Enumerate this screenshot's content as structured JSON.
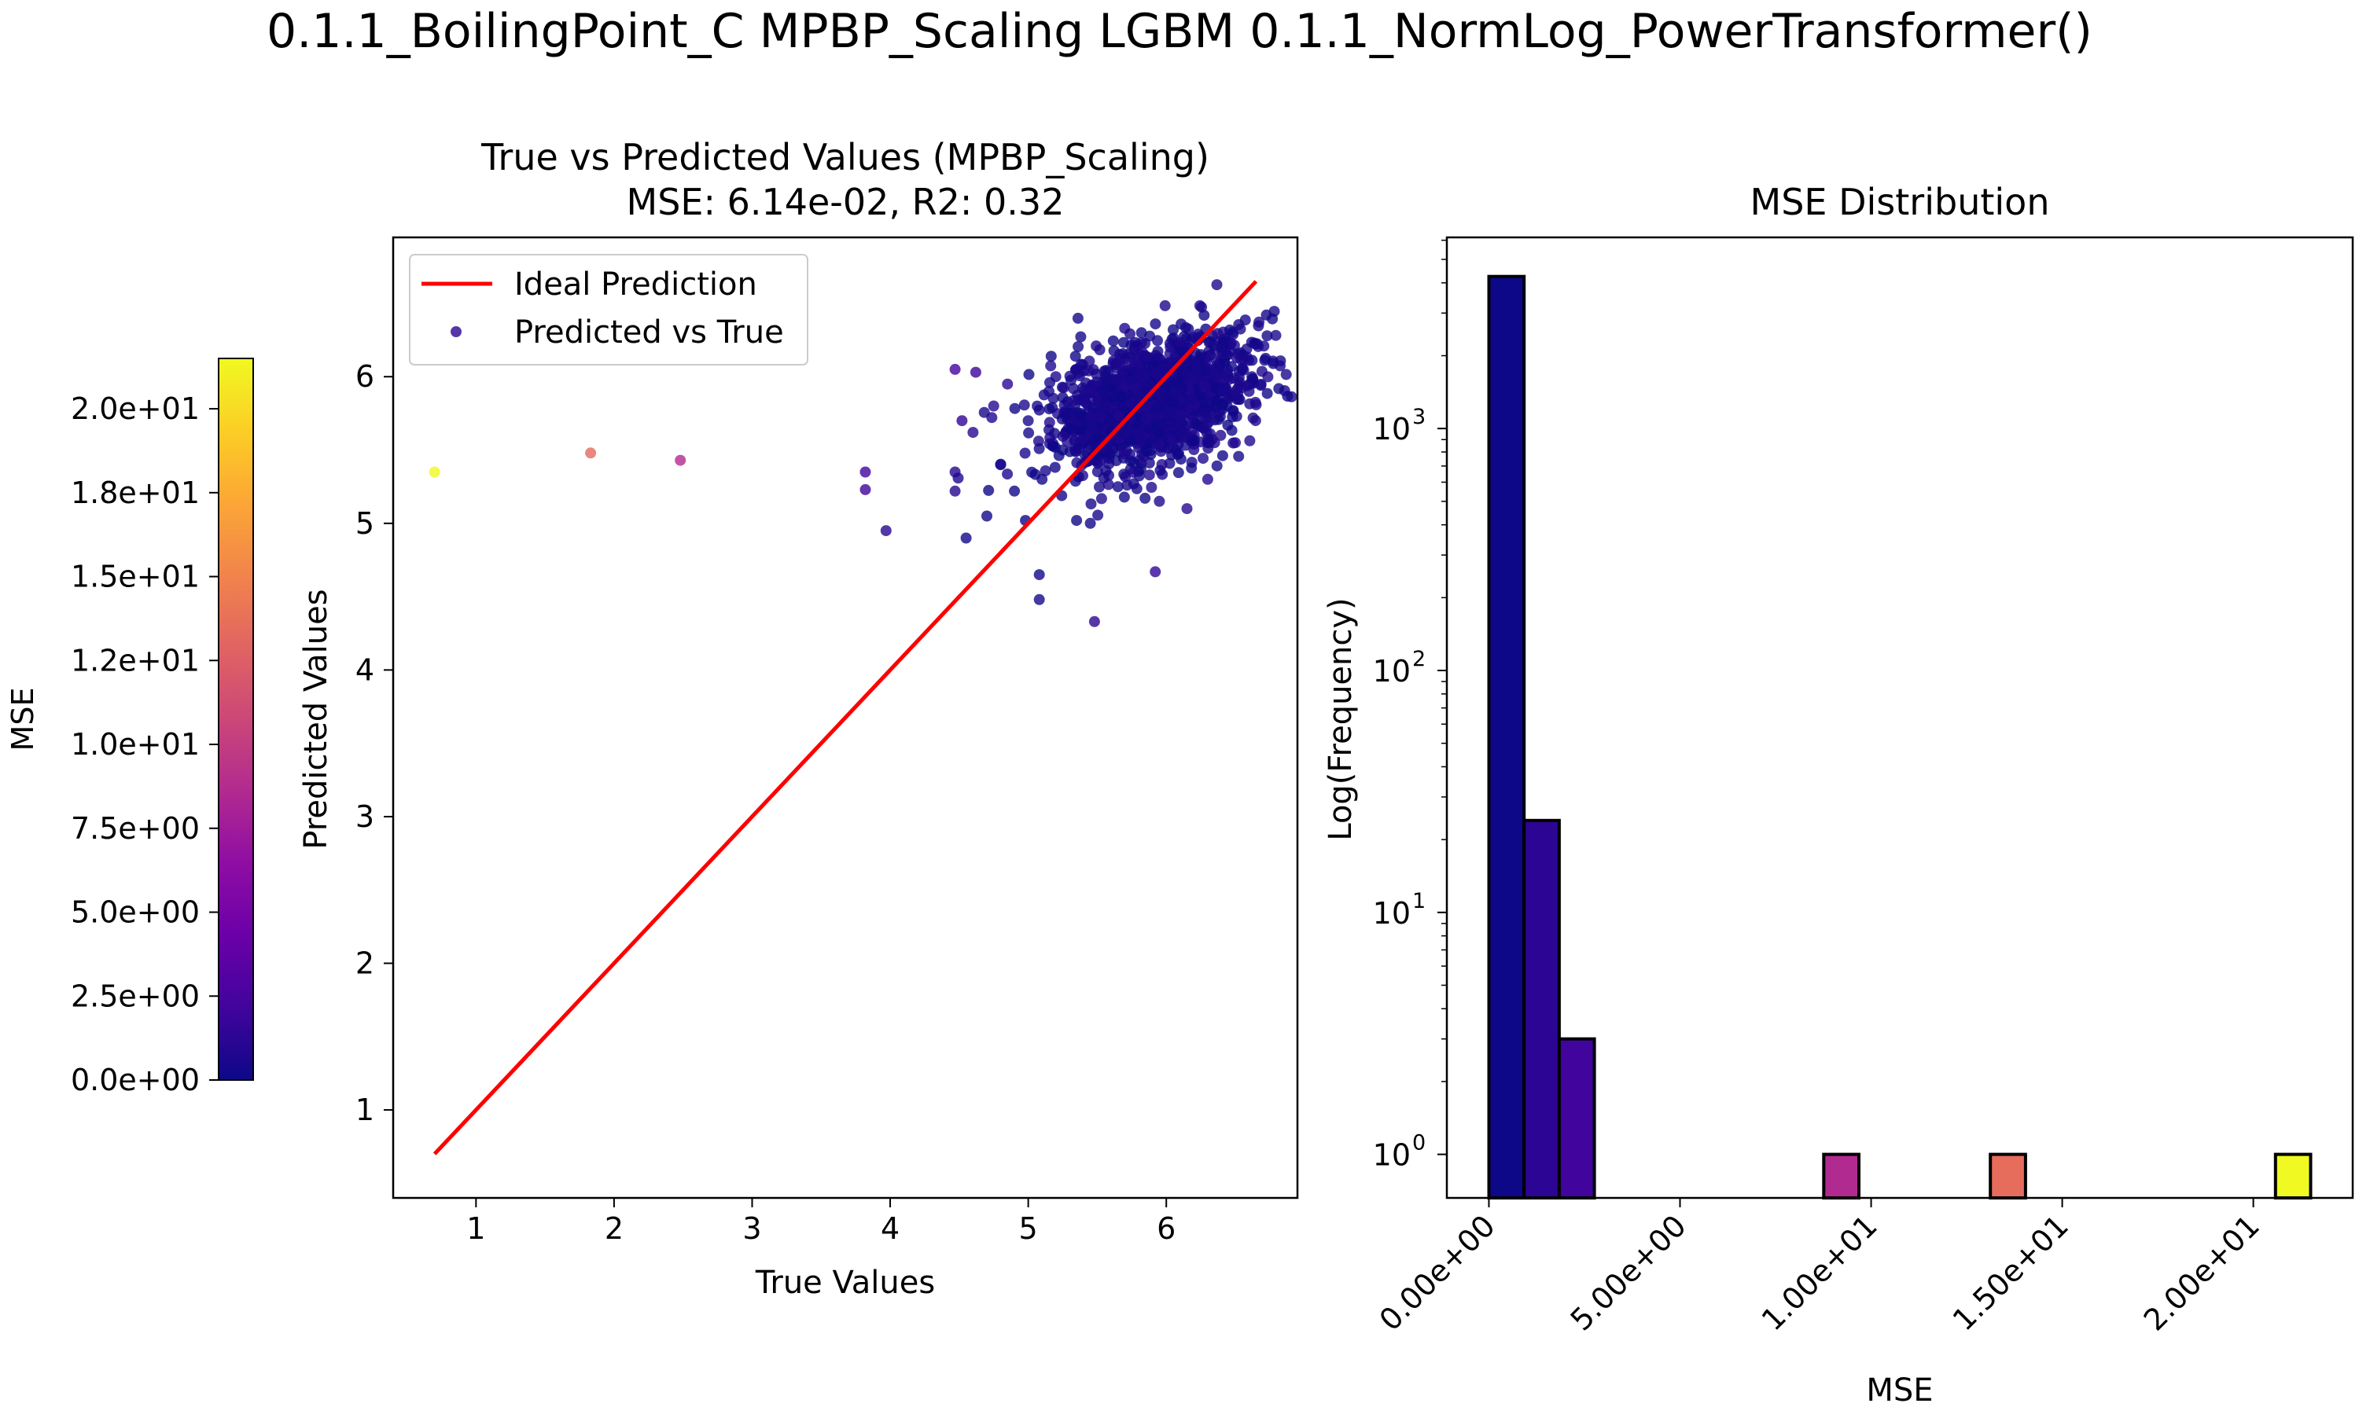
{
  "figure": {
    "suptitle": "0.1.1_BoilingPoint_C MPBP_Scaling LGBM 0.1.1_NormLog_PowerTransformer()"
  },
  "chart_data": [
    {
      "type": "scatter",
      "title": "True vs Predicted Values (MPBP_Scaling)",
      "subtitle": "MSE: 6.14e-02, R2: 0.32",
      "xlabel": "True Values",
      "ylabel": "Predicted Values",
      "xlim": [
        0.4,
        6.95
      ],
      "ylim": [
        0.4,
        6.95
      ],
      "xticks": [
        1,
        2,
        3,
        4,
        5,
        6
      ],
      "yticks": [
        1,
        2,
        3,
        4,
        5,
        6
      ],
      "grid": false,
      "legend": {
        "position": "top-left",
        "entries": [
          {
            "label": "Ideal Prediction",
            "color": "#ff0000",
            "kind": "line"
          },
          {
            "label": "Predicted vs True",
            "color": "#2a0593",
            "kind": "marker"
          }
        ]
      },
      "ideal_line": {
        "x": [
          0.7,
          6.65
        ],
        "y": [
          0.7,
          6.65
        ],
        "color": "#ff0000"
      },
      "colormap": "plasma",
      "colorbar": {
        "label": "MSE",
        "range": [
          0,
          21.5
        ],
        "ticks": [
          0,
          2.5,
          5,
          7.5,
          10,
          12.5,
          15,
          17.5,
          20
        ],
        "tick_labels": [
          "0.0e+00",
          "2.5e+00",
          "5.0e+00",
          "7.5e+00",
          "1.0e+01",
          "1.2e+01",
          "1.5e+01",
          "1.8e+01",
          "2.0e+01"
        ]
      },
      "points": [
        {
          "x": 0.7,
          "y": 5.35,
          "mse": 21.5
        },
        {
          "x": 1.83,
          "y": 5.48,
          "mse": 13.3
        },
        {
          "x": 2.48,
          "y": 5.43,
          "mse": 8.7
        },
        {
          "x": 3.82,
          "y": 5.35,
          "mse": 2.3
        },
        {
          "x": 3.82,
          "y": 5.23,
          "mse": 2.0
        },
        {
          "x": 3.97,
          "y": 4.95,
          "mse": 1.1
        },
        {
          "x": 4.47,
          "y": 6.05,
          "mse": 2.4
        },
        {
          "x": 4.62,
          "y": 6.03,
          "mse": 1.9
        },
        {
          "x": 4.47,
          "y": 5.35,
          "mse": 0.9
        },
        {
          "x": 4.47,
          "y": 5.22,
          "mse": 0.9
        },
        {
          "x": 4.52,
          "y": 5.7,
          "mse": 1.4
        },
        {
          "x": 4.55,
          "y": 4.9,
          "mse": 0.2
        },
        {
          "x": 4.6,
          "y": 5.62,
          "mse": 1.1
        },
        {
          "x": 4.7,
          "y": 5.05,
          "mse": 0.2
        },
        {
          "x": 4.75,
          "y": 5.8,
          "mse": 1.1
        },
        {
          "x": 4.8,
          "y": 5.4,
          "mse": 0.4
        },
        {
          "x": 4.85,
          "y": 5.95,
          "mse": 1.2
        },
        {
          "x": 4.9,
          "y": 5.22,
          "mse": 0.1
        },
        {
          "x": 4.98,
          "y": 5.02,
          "mse": 0.0
        },
        {
          "x": 5.08,
          "y": 4.65,
          "mse": 0.2
        },
        {
          "x": 5.08,
          "y": 4.48,
          "mse": 0.4
        },
        {
          "x": 5.0,
          "y": 5.7,
          "mse": 0.5
        },
        {
          "x": 5.1,
          "y": 5.3,
          "mse": 0.1
        },
        {
          "x": 5.15,
          "y": 5.9,
          "mse": 0.6
        },
        {
          "x": 5.2,
          "y": 6.0,
          "mse": 0.6
        },
        {
          "x": 5.25,
          "y": 5.5,
          "mse": 0.1
        },
        {
          "x": 5.35,
          "y": 6.05,
          "mse": 0.5
        },
        {
          "x": 5.35,
          "y": 5.02,
          "mse": 0.1
        },
        {
          "x": 5.48,
          "y": 4.33,
          "mse": 1.3
        },
        {
          "x": 5.45,
          "y": 5.0,
          "mse": 0.2
        },
        {
          "x": 5.65,
          "y": 5.25,
          "mse": 0.2
        },
        {
          "x": 5.92,
          "y": 4.67,
          "mse": 1.6
        },
        {
          "x": 5.95,
          "y": 5.15,
          "mse": 0.6
        },
        {
          "x": 6.15,
          "y": 5.1,
          "mse": 1.1
        },
        {
          "x": 6.3,
          "y": 5.3,
          "mse": 1.0
        },
        {
          "x": 6.35,
          "y": 5.55,
          "mse": 0.6
        },
        {
          "x": 6.45,
          "y": 5.85,
          "mse": 0.4
        },
        {
          "x": 6.5,
          "y": 5.55,
          "mse": 0.9
        },
        {
          "x": 6.55,
          "y": 6.05,
          "mse": 0.3
        },
        {
          "x": 6.6,
          "y": 5.9,
          "mse": 0.5
        },
        {
          "x": 6.62,
          "y": 6.0,
          "mse": 0.4
        },
        {
          "x": 5.82,
          "y": 6.3,
          "mse": 0.2
        },
        {
          "x": 6.05,
          "y": 6.32,
          "mse": 0.1
        }
      ],
      "cluster": {
        "center_x": 5.9,
        "center_y": 5.83,
        "spread_x": 0.35,
        "spread_y": 0.2,
        "count": 1500,
        "mse_range": [
          0,
          0.8
        ]
      }
    },
    {
      "type": "bar",
      "title": "MSE Distribution",
      "xlabel": "MSE",
      "ylabel": "Log(Frequency)",
      "yscale": "log",
      "xlim": [
        -1.1,
        22.6
      ],
      "ylim_exp": [
        -0.18,
        3.79
      ],
      "xticks": [
        0,
        5,
        10,
        15,
        20
      ],
      "xtick_labels": [
        "0.00e+00",
        "5.00e+00",
        "1.00e+01",
        "1.50e+01",
        "2.00e+01"
      ],
      "yticks": [
        1,
        10,
        100,
        1000
      ],
      "ytick_labels": [
        "10",
        "10",
        "10",
        "10"
      ],
      "ytick_exponents": [
        "0",
        "1",
        "2",
        "3"
      ],
      "bin_width": 0.92,
      "bars": [
        {
          "left": 0.0,
          "count": 4250,
          "color": "#0d0887"
        },
        {
          "left": 0.92,
          "count": 24,
          "color": "#2c0594"
        },
        {
          "left": 1.84,
          "count": 3,
          "color": "#41049d"
        },
        {
          "left": 8.76,
          "count": 1,
          "color": "#b12a90"
        },
        {
          "left": 13.12,
          "count": 1,
          "color": "#e66c5c"
        },
        {
          "left": 20.58,
          "count": 1,
          "color": "#f0f921"
        }
      ]
    }
  ]
}
